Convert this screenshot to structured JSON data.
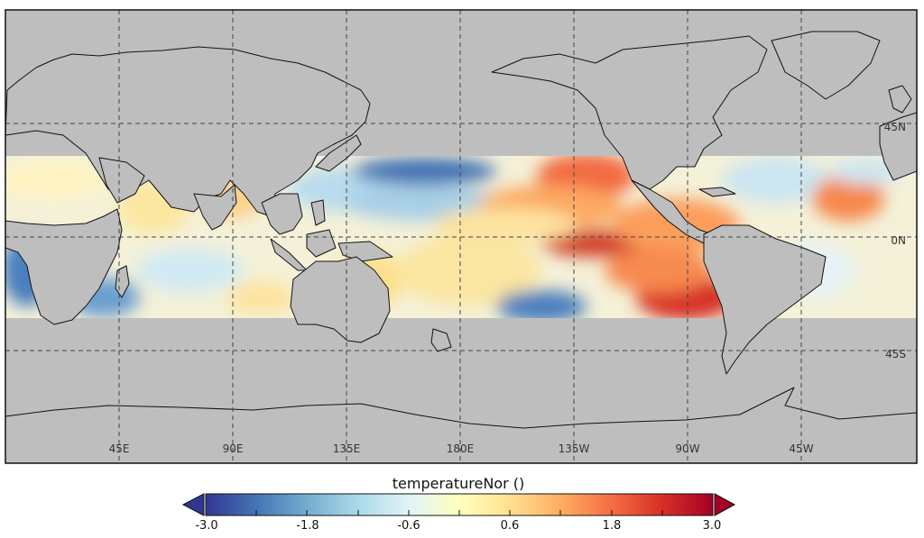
{
  "map": {
    "variable_title": "temperatureNor ()",
    "lon_labels": [
      "45E",
      "90E",
      "135E",
      "180E",
      "135W",
      "90W",
      "45W"
    ],
    "lat_labels": [
      "45N",
      "0N",
      "45S"
    ],
    "ocean_background": "#bebebe",
    "land_fill": "#bebebe",
    "coastline_color": "#111111",
    "gridline_style": "dashed",
    "data_band": "30S to 30N"
  },
  "colorbar": {
    "tick_labels": [
      "-3.0",
      "-1.8",
      "-0.6",
      "0.6",
      "1.8",
      "3.0"
    ],
    "min": -3.0,
    "max": 3.0,
    "extend": "both",
    "colormap": [
      "#313695",
      "#4575b4",
      "#74add1",
      "#abd9e9",
      "#e0f3f8",
      "#ffffbf",
      "#fee090",
      "#fdae61",
      "#f46d43",
      "#d73027",
      "#a50026"
    ]
  }
}
